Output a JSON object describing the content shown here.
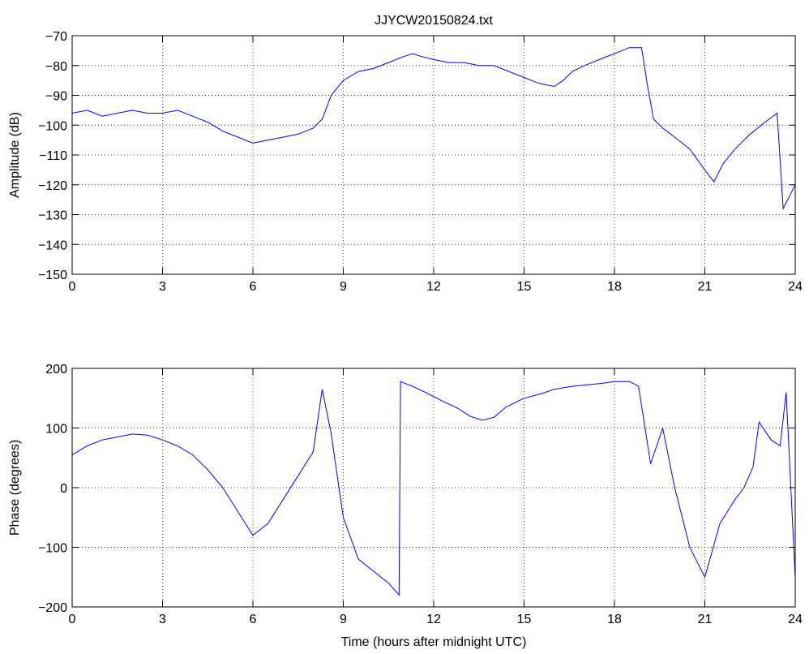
{
  "chart_data": [
    {
      "type": "line",
      "title": "JJYCW20150824.txt",
      "xlabel": "",
      "ylabel": "Amplitude (dB)",
      "xlim": [
        0,
        24
      ],
      "ylim": [
        -150,
        -70
      ],
      "xticks": [
        0,
        3,
        6,
        9,
        12,
        15,
        18,
        21,
        24
      ],
      "yticks": [
        -70,
        -80,
        -90,
        -100,
        -110,
        -120,
        -130,
        -140,
        -150
      ],
      "grid": true,
      "color": "#0000ff",
      "series": [
        {
          "x": [
            0,
            0.5,
            1,
            1.5,
            2,
            2.5,
            3,
            3.5,
            4,
            4.5,
            5,
            5.5,
            6,
            6.5,
            7,
            7.5,
            8,
            8.3,
            8.6,
            9,
            9.5,
            10,
            10.5,
            11,
            11.3,
            11.6,
            12,
            12.5,
            13,
            13.5,
            14,
            14.5,
            15,
            15.5,
            16,
            16.3,
            16.6,
            17,
            17.5,
            18,
            18.5,
            18.9,
            19.1,
            19.3,
            19.6,
            20,
            20.5,
            21,
            21.3,
            21.6,
            22,
            22.5,
            23,
            23.4,
            23.6,
            24
          ],
          "y": [
            -96,
            -95,
            -97,
            -96,
            -95,
            -96,
            -96,
            -95,
            -97,
            -99,
            -102,
            -104,
            -106,
            -105,
            -104,
            -103,
            -101,
            -98,
            -90,
            -85,
            -82,
            -81,
            -79,
            -77,
            -76,
            -77,
            -78,
            -79,
            -79,
            -80,
            -80,
            -82,
            -84,
            -86,
            -87,
            -85,
            -82,
            -80,
            -78,
            -76,
            -74,
            -74,
            -87,
            -98,
            -101,
            -104,
            -108,
            -115,
            -119,
            -113,
            -108,
            -103,
            -99,
            -96,
            -128,
            -120
          ]
        }
      ]
    },
    {
      "type": "line",
      "title": "",
      "xlabel": "Time (hours after midnight UTC)",
      "ylabel": "Phase (degrees)",
      "xlim": [
        0,
        24
      ],
      "ylim": [
        -200,
        200
      ],
      "xticks": [
        0,
        3,
        6,
        9,
        12,
        15,
        18,
        21,
        24
      ],
      "yticks": [
        200,
        100,
        0,
        -100,
        -200
      ],
      "grid": true,
      "color": "#0000ff",
      "series": [
        {
          "x": [
            0,
            0.5,
            1,
            1.5,
            2,
            2.5,
            3,
            3.5,
            4,
            4.5,
            5,
            5.5,
            6,
            6.5,
            7,
            7.5,
            8,
            8.3,
            8.6,
            9,
            9.5,
            10,
            10.5,
            10.85,
            10.9,
            11.3,
            11.8,
            12.3,
            12.8,
            13.2,
            13.6,
            14,
            14.4,
            15,
            15.6,
            16,
            16.6,
            17,
            17.6,
            18,
            18.5,
            18.8,
            19.2,
            19.6,
            20,
            20.5,
            21,
            21.5,
            22,
            22.3,
            22.6,
            22.8,
            23.2,
            23.5,
            23.7,
            24
          ],
          "y": [
            55,
            70,
            80,
            85,
            90,
            88,
            80,
            70,
            55,
            30,
            0,
            -40,
            -80,
            -60,
            -20,
            20,
            60,
            165,
            90,
            -50,
            -120,
            -140,
            -160,
            -180,
            178,
            170,
            158,
            145,
            133,
            120,
            113,
            118,
            135,
            150,
            158,
            165,
            170,
            172,
            175,
            178,
            178,
            170,
            40,
            100,
            0,
            -100,
            -150,
            -60,
            -20,
            0,
            35,
            110,
            80,
            70,
            160,
            -150
          ]
        }
      ]
    }
  ]
}
